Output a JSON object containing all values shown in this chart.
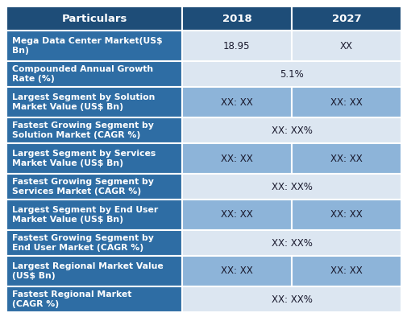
{
  "header_bg": "#1e4d78",
  "header_text_color": "#ffffff",
  "dark_row_label_bg": "#2e6da4",
  "dark_row_label_tc": "#ffffff",
  "dark_row_cell_bg": "#8db4d9",
  "dark_row_cell_tc": "#1a1a2e",
  "light_row_label_bg": "#2e6da4",
  "light_row_label_tc": "#ffffff",
  "light_row_cell_bg": "#dce6f1",
  "light_row_cell_tc": "#1a1a2e",
  "border_color": "#ffffff",
  "col_header": "Particulars",
  "col_2018": "2018",
  "col_2027": "2027",
  "rows": [
    {
      "label": "Mega Data Center Market(US$\nBn)",
      "type": "two_col",
      "val_2018": "18.95",
      "val_2027": "XX",
      "cell_style": "light"
    },
    {
      "label": "Compounded Annual Growth\nRate (%)",
      "type": "span",
      "val": "5.1%",
      "cell_style": "light"
    },
    {
      "label": "Largest Segment by Solution\nMarket Value (US$ Bn)",
      "type": "two_col",
      "val_2018": "XX: XX",
      "val_2027": "XX: XX",
      "cell_style": "dark"
    },
    {
      "label": "Fastest Growing Segment by\nSolution Market (CAGR %)",
      "type": "span",
      "val": "XX: XX%",
      "cell_style": "light"
    },
    {
      "label": "Largest Segment by Services\nMarket Value (US$ Bn)",
      "type": "two_col",
      "val_2018": "XX: XX",
      "val_2027": "XX: XX",
      "cell_style": "dark"
    },
    {
      "label": "Fastest Growing Segment by\nServices Market (CAGR %)",
      "type": "span",
      "val": "XX: XX%",
      "cell_style": "light"
    },
    {
      "label": "Largest Segment by End User\nMarket Value (US$ Bn)",
      "type": "two_col",
      "val_2018": "XX: XX",
      "val_2027": "XX: XX",
      "cell_style": "dark"
    },
    {
      "label": "Fastest Growing Segment by\nEnd User Market (CAGR %)",
      "type": "span",
      "val": "XX: XX%",
      "cell_style": "light"
    },
    {
      "label": "Largest Regional Market Value\n(US$ Bn)",
      "type": "two_col",
      "val_2018": "XX: XX",
      "val_2027": "XX: XX",
      "cell_style": "dark"
    },
    {
      "label": "Fastest Regional Market\n(CAGR %)",
      "type": "span",
      "val": "XX: XX%",
      "cell_style": "light"
    }
  ]
}
